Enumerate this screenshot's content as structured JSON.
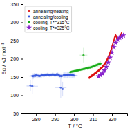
{
  "chart_data": {
    "type": "scatter",
    "xlabel": "T / °C",
    "ylabel": "Eα / kJ mol⁻¹",
    "xlim": [
      273,
      328
    ],
    "ylim": [
      50,
      350
    ],
    "xticks": [
      280,
      290,
      300,
      310,
      320
    ],
    "yticks": [
      50,
      100,
      150,
      200,
      250,
      300,
      350
    ],
    "legend": "upper left",
    "series": [
      {
        "name": "annealing/heating",
        "color": "#dd1111",
        "marker": "diamond",
        "x": [
          308.0,
          308.2,
          308.4,
          308.6,
          308.8,
          309.0,
          309.2,
          309.4,
          309.6,
          309.8,
          310.0,
          310.2,
          310.4,
          310.6,
          310.8,
          311.0,
          311.2,
          311.4,
          311.6,
          311.8,
          312.0,
          312.2,
          312.4,
          312.6,
          312.8,
          313.0,
          313.2,
          313.4,
          313.6,
          313.8,
          314.0,
          314.2,
          314.4,
          314.6,
          314.8,
          315.0,
          315.2,
          315.4,
          315.6,
          315.8,
          316.0,
          316.2,
          316.4,
          316.6,
          316.8,
          317.0,
          317.2,
          317.4,
          317.6,
          317.8,
          318.0,
          318.2,
          318.4,
          318.6,
          318.8,
          319.0,
          319.2,
          319.4,
          319.6,
          319.8,
          320.0,
          320.2,
          320.4,
          320.6,
          320.8,
          321.0,
          321.2,
          321.4,
          321.6,
          321.8,
          322.0,
          322.2,
          322.4,
          322.6,
          322.8,
          323.0,
          323.5,
          324.0,
          324.5,
          325.0
        ],
        "values": [
          148,
          149,
          150,
          151,
          151,
          152,
          153,
          154,
          154,
          155,
          156,
          157,
          157,
          158,
          159,
          160,
          161,
          161,
          162,
          163,
          164,
          165,
          166,
          166,
          167,
          168,
          169,
          170,
          171,
          172,
          173,
          174,
          175,
          176,
          177,
          178,
          179,
          181,
          182,
          183,
          185,
          186,
          188,
          189,
          191,
          193,
          195,
          197,
          199,
          201,
          204,
          206,
          209,
          211,
          214,
          217,
          220,
          223,
          226,
          229,
          233,
          236,
          240,
          244,
          247,
          251,
          255,
          258,
          261,
          264,
          264,
          261,
          260,
          257,
          255,
          253,
          255,
          260,
          265,
          270
        ]
      },
      {
        "name": "annealing/cooling",
        "color": "#3355dd",
        "marker": "circle",
        "x": [
          277,
          278,
          278.5,
          279,
          279.5,
          280,
          280.5,
          281,
          281.5,
          282,
          282.5,
          283,
          283.5,
          284,
          284.5,
          285,
          285.5,
          286,
          286.5,
          287,
          287.5,
          288,
          288.5,
          289,
          289.5,
          290,
          290.5,
          291,
          291.5,
          292,
          292.5,
          293,
          293.5,
          294,
          294.5,
          295,
          295.5,
          296,
          296.5,
          297,
          297.5,
          298,
          298.5,
          299,
          299.5,
          300,
          278,
          293
        ],
        "values": [
          127,
          153,
          152,
          154,
          153,
          155,
          154,
          154,
          153,
          153,
          154,
          155,
          155,
          154,
          155,
          156,
          156,
          157,
          156,
          155,
          156,
          156,
          157,
          157,
          156,
          155,
          156,
          158,
          157,
          155,
          153,
          153,
          152,
          117,
          155,
          155,
          156,
          155,
          156,
          157,
          156,
          157,
          156,
          155,
          155,
          154,
          125,
          121
        ],
        "xerr": [
          2,
          2,
          2,
          2,
          2,
          2,
          2,
          2,
          2,
          2,
          2,
          2,
          2,
          2,
          2,
          2,
          2,
          2,
          2,
          2,
          2,
          2,
          2,
          2,
          2,
          2,
          2,
          2,
          2,
          2,
          2,
          2,
          2,
          2,
          2,
          2,
          2,
          2,
          2,
          2,
          2,
          2,
          2,
          2,
          2,
          2,
          3,
          3
        ],
        "yerr": [
          15,
          8,
          8,
          7,
          7,
          6,
          6,
          6,
          6,
          6,
          6,
          6,
          5,
          5,
          5,
          5,
          5,
          5,
          5,
          5,
          5,
          5,
          5,
          5,
          5,
          5,
          5,
          6,
          6,
          6,
          7,
          7,
          8,
          20,
          8,
          8,
          8,
          8,
          8,
          8,
          8,
          8,
          8,
          8,
          8,
          8,
          22,
          28
        ]
      },
      {
        "name": "cooling, T*=315°C",
        "color": "#11aa11",
        "marker": "circle",
        "x": [
          298,
          298.5,
          299,
          299.5,
          300,
          300.5,
          301,
          301.5,
          302,
          302.5,
          303,
          303.5,
          304,
          304.5,
          305,
          305.5,
          306,
          306.5,
          307,
          307.5,
          308,
          308.5,
          309,
          309.5,
          310,
          310.5,
          311,
          311.5,
          312,
          312.5,
          313,
          313.5,
          314,
          305
        ],
        "values": [
          163,
          164,
          165,
          165,
          166,
          167,
          167,
          168,
          168,
          169,
          170,
          170,
          171,
          171,
          172,
          172,
          173,
          174,
          174,
          175,
          176,
          176,
          177,
          178,
          179,
          180,
          181,
          182,
          183,
          184,
          185,
          186,
          187,
          210
        ],
        "xerr": [
          1,
          1,
          1,
          1,
          1,
          1,
          1,
          1,
          1,
          1,
          1,
          1,
          1,
          1,
          1,
          1,
          1,
          1,
          1,
          1,
          1,
          1,
          1,
          1,
          1,
          1,
          1,
          1,
          1,
          1,
          1,
          1,
          1,
          2
        ],
        "yerr": [
          4,
          4,
          4,
          4,
          4,
          4,
          4,
          4,
          4,
          4,
          4,
          4,
          4,
          4,
          4,
          4,
          4,
          4,
          5,
          5,
          5,
          5,
          5,
          5,
          5,
          5,
          5,
          5,
          5,
          6,
          6,
          6,
          6,
          20
        ]
      },
      {
        "name": "cooling, T*=325°C",
        "color": "#8822cc",
        "marker": "star",
        "x": [
          313,
          314,
          315,
          316,
          317,
          318,
          319,
          320,
          321,
          322,
          323,
          324,
          325,
          326
        ],
        "values": [
          152,
          155,
          160,
          168,
          178,
          190,
          203,
          217,
          232,
          244,
          253,
          258,
          261,
          264
        ]
      }
    ]
  }
}
